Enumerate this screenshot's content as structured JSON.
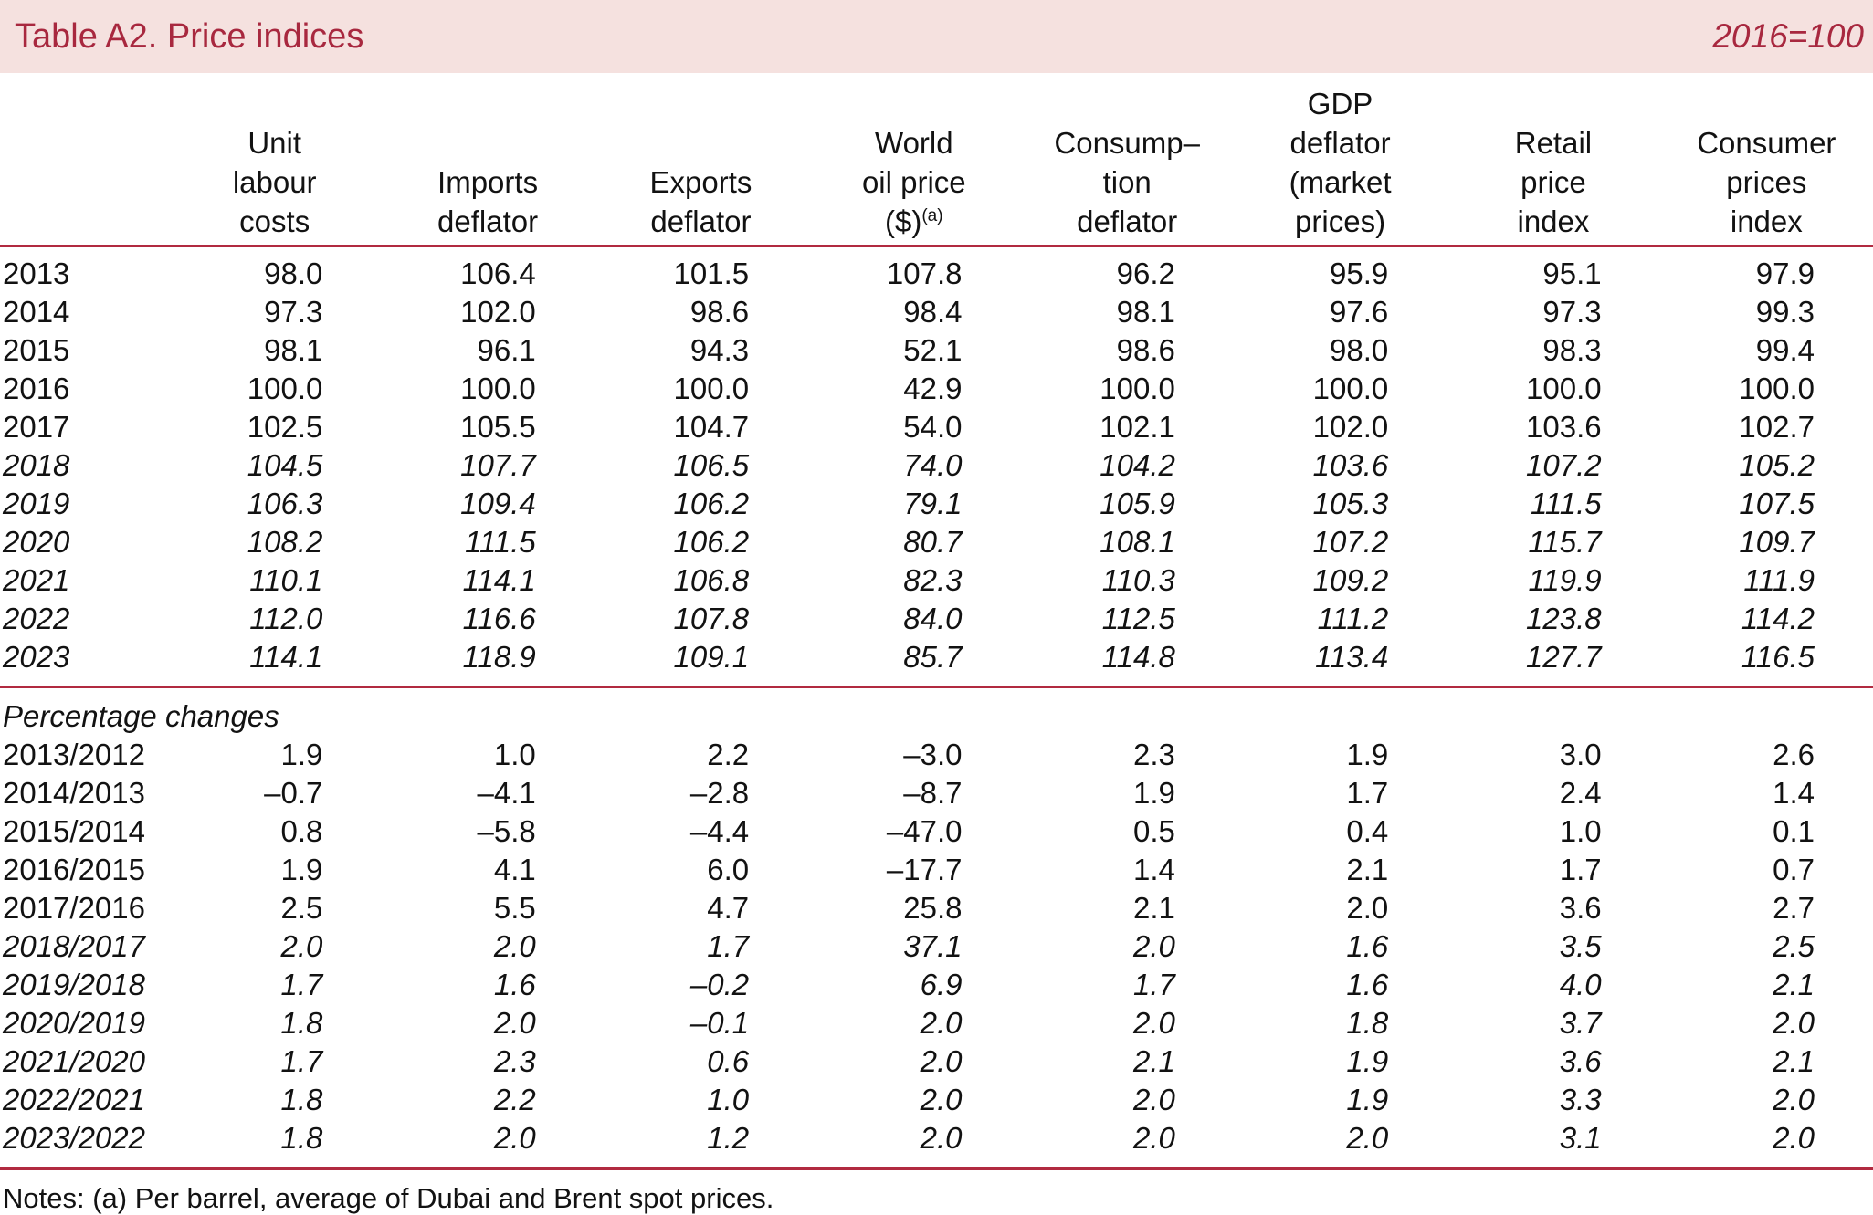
{
  "page": {
    "header": {
      "title": "Table A2. Price indices",
      "base_note": "2016=100"
    },
    "columns": [
      {
        "id": "unit-labour-costs",
        "label": "Unit\nlabour\ncosts"
      },
      {
        "id": "imports-deflator",
        "label": "Imports\ndeflator"
      },
      {
        "id": "exports-deflator",
        "label": "Exports\ndeflator"
      },
      {
        "id": "world-oil-price",
        "label": "World\noil price\n($)",
        "sup": "(a)"
      },
      {
        "id": "consumption-deflator",
        "label": "Consump–\ntion\ndeflator"
      },
      {
        "id": "gdp-deflator",
        "label": "GDP\ndeflator\n(market\nprices)"
      },
      {
        "id": "retail-price-index",
        "label": "Retail\nprice\nindex"
      },
      {
        "id": "consumer-prices-index",
        "label": "Consumer\nprices\nindex"
      }
    ],
    "index_rows": [
      {
        "label": "2013",
        "italic": false,
        "values": [
          "98.0",
          "106.4",
          "101.5",
          "107.8",
          "96.2",
          "95.9",
          "95.1",
          "97.9"
        ]
      },
      {
        "label": "2014",
        "italic": false,
        "values": [
          "97.3",
          "102.0",
          "98.6",
          "98.4",
          "98.1",
          "97.6",
          "97.3",
          "99.3"
        ]
      },
      {
        "label": "2015",
        "italic": false,
        "values": [
          "98.1",
          "96.1",
          "94.3",
          "52.1",
          "98.6",
          "98.0",
          "98.3",
          "99.4"
        ]
      },
      {
        "label": "2016",
        "italic": false,
        "values": [
          "100.0",
          "100.0",
          "100.0",
          "42.9",
          "100.0",
          "100.0",
          "100.0",
          "100.0"
        ]
      },
      {
        "label": "2017",
        "italic": false,
        "values": [
          "102.5",
          "105.5",
          "104.7",
          "54.0",
          "102.1",
          "102.0",
          "103.6",
          "102.7"
        ]
      },
      {
        "label": "2018",
        "italic": true,
        "values": [
          "104.5",
          "107.7",
          "106.5",
          "74.0",
          "104.2",
          "103.6",
          "107.2",
          "105.2"
        ]
      },
      {
        "label": "2019",
        "italic": true,
        "values": [
          "106.3",
          "109.4",
          "106.2",
          "79.1",
          "105.9",
          "105.3",
          "111.5",
          "107.5"
        ]
      },
      {
        "label": "2020",
        "italic": true,
        "values": [
          "108.2",
          "111.5",
          "106.2",
          "80.7",
          "108.1",
          "107.2",
          "115.7",
          "109.7"
        ]
      },
      {
        "label": "2021",
        "italic": true,
        "values": [
          "110.1",
          "114.1",
          "106.8",
          "82.3",
          "110.3",
          "109.2",
          "119.9",
          "111.9"
        ]
      },
      {
        "label": "2022",
        "italic": true,
        "values": [
          "112.0",
          "116.6",
          "107.8",
          "84.0",
          "112.5",
          "111.2",
          "123.8",
          "114.2"
        ]
      },
      {
        "label": "2023",
        "italic": true,
        "values": [
          "114.1",
          "118.9",
          "109.1",
          "85.7",
          "114.8",
          "113.4",
          "127.7",
          "116.5"
        ]
      }
    ],
    "section_label": "Percentage changes",
    "pct_rows": [
      {
        "label": "2013/2012",
        "italic": false,
        "values": [
          "1.9",
          "1.0",
          "2.2",
          "–3.0",
          "2.3",
          "1.9",
          "3.0",
          "2.6"
        ]
      },
      {
        "label": "2014/2013",
        "italic": false,
        "values": [
          "–0.7",
          "–4.1",
          "–2.8",
          "–8.7",
          "1.9",
          "1.7",
          "2.4",
          "1.4"
        ]
      },
      {
        "label": "2015/2014",
        "italic": false,
        "values": [
          "0.8",
          "–5.8",
          "–4.4",
          "–47.0",
          "0.5",
          "0.4",
          "1.0",
          "0.1"
        ]
      },
      {
        "label": "2016/2015",
        "italic": false,
        "values": [
          "1.9",
          "4.1",
          "6.0",
          "–17.7",
          "1.4",
          "2.1",
          "1.7",
          "0.7"
        ]
      },
      {
        "label": "2017/2016",
        "italic": false,
        "values": [
          "2.5",
          "5.5",
          "4.7",
          "25.8",
          "2.1",
          "2.0",
          "3.6",
          "2.7"
        ]
      },
      {
        "label": "2018/2017",
        "italic": true,
        "values": [
          "2.0",
          "2.0",
          "1.7",
          "37.1",
          "2.0",
          "1.6",
          "3.5",
          "2.5"
        ]
      },
      {
        "label": "2019/2018",
        "italic": true,
        "values": [
          "1.7",
          "1.6",
          "–0.2",
          "6.9",
          "1.7",
          "1.6",
          "4.0",
          "2.1"
        ]
      },
      {
        "label": "2020/2019",
        "italic": true,
        "values": [
          "1.8",
          "2.0",
          "–0.1",
          "2.0",
          "2.0",
          "1.8",
          "3.7",
          "2.0"
        ]
      },
      {
        "label": "2021/2020",
        "italic": true,
        "values": [
          "1.7",
          "2.3",
          "0.6",
          "2.0",
          "2.1",
          "1.9",
          "3.6",
          "2.1"
        ]
      },
      {
        "label": "2022/2021",
        "italic": true,
        "values": [
          "1.8",
          "2.2",
          "1.0",
          "2.0",
          "2.0",
          "1.9",
          "3.3",
          "2.0"
        ]
      },
      {
        "label": "2023/2022",
        "italic": true,
        "values": [
          "1.8",
          "2.0",
          "1.2",
          "2.0",
          "2.0",
          "2.0",
          "3.1",
          "2.0"
        ]
      }
    ],
    "notes": "Notes: (a) Per barrel, average of Dubai and Brent spot prices.",
    "colors": {
      "accent_text": "#a8283f",
      "rule": "#b12a40",
      "band_bg": "#f5e1df"
    }
  }
}
